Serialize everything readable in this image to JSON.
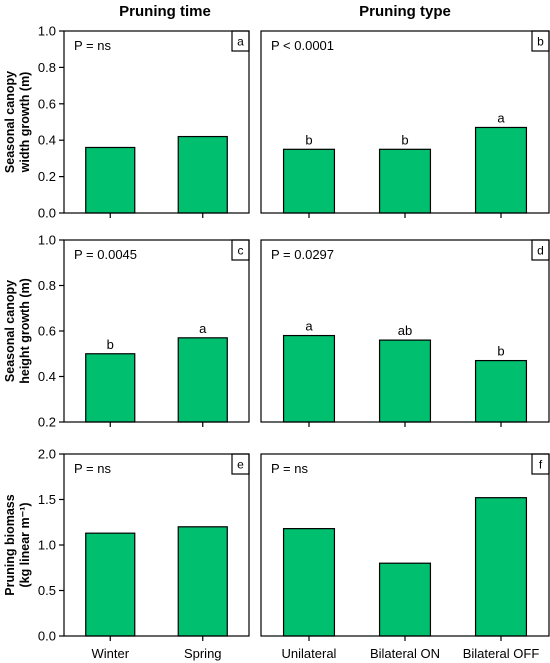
{
  "column_titles": [
    "Pruning time",
    "Pruning type"
  ],
  "bar_color": "#00bf6f",
  "chart_data": [
    {
      "type": "bar",
      "panel": "a",
      "p_label": "P = ns",
      "ylabel": [
        "Seasonal canopy",
        "width growth (m)"
      ],
      "categories": [
        "Winter",
        "Spring"
      ],
      "values": [
        0.36,
        0.42
      ],
      "significance": [
        "",
        ""
      ],
      "ylim": [
        0,
        1.0
      ],
      "yticks": [
        "0.0",
        "0.2",
        "0.4",
        "0.6",
        "0.8",
        "1.0"
      ],
      "show_xticklabels": false
    },
    {
      "type": "bar",
      "panel": "b",
      "p_label": "P < 0.0001",
      "ylabel": [],
      "categories": [
        "Unilateral",
        "Bilateral ON",
        "Bilateral OFF"
      ],
      "values": [
        0.35,
        0.35,
        0.47
      ],
      "significance": [
        "b",
        "b",
        "a"
      ],
      "ylim": [
        0,
        1.0
      ],
      "yticks": [],
      "show_xticklabels": false
    },
    {
      "type": "bar",
      "panel": "c",
      "p_label": "P = 0.0045",
      "ylabel": [
        "Seasonal canopy",
        "height growth (m)"
      ],
      "categories": [
        "Winter",
        "Spring"
      ],
      "values": [
        0.5,
        0.57
      ],
      "significance": [
        "b",
        "a"
      ],
      "ylim": [
        0.2,
        1.0
      ],
      "yticks": [
        "0.2",
        "0.4",
        "0.6",
        "0.8",
        "1.0"
      ],
      "show_xticklabels": false
    },
    {
      "type": "bar",
      "panel": "d",
      "p_label": "P = 0.0297",
      "ylabel": [],
      "categories": [
        "Unilateral",
        "Bilateral ON",
        "Bilateral OFF"
      ],
      "values": [
        0.58,
        0.56,
        0.47
      ],
      "significance": [
        "a",
        "ab",
        "b"
      ],
      "ylim": [
        0.2,
        1.0
      ],
      "yticks": [],
      "show_xticklabels": false
    },
    {
      "type": "bar",
      "panel": "e",
      "p_label": "P = ns",
      "ylabel": [
        "Pruning biomass",
        "(kg linear m⁻¹)"
      ],
      "categories": [
        "Winter",
        "Spring"
      ],
      "values": [
        1.13,
        1.2
      ],
      "significance": [
        "",
        ""
      ],
      "ylim": [
        0,
        2.0
      ],
      "yticks": [
        "0.0",
        "0.5",
        "1.0",
        "1.5",
        "2.0"
      ],
      "show_xticklabels": true
    },
    {
      "type": "bar",
      "panel": "f",
      "p_label": "P = ns",
      "ylabel": [],
      "categories": [
        "Unilateral",
        "Bilateral ON",
        "Bilateral OFF"
      ],
      "values": [
        1.18,
        0.8,
        1.52
      ],
      "significance": [
        "",
        "",
        ""
      ],
      "ylim": [
        0,
        2.0
      ],
      "yticks": [],
      "show_xticklabels": true
    }
  ]
}
